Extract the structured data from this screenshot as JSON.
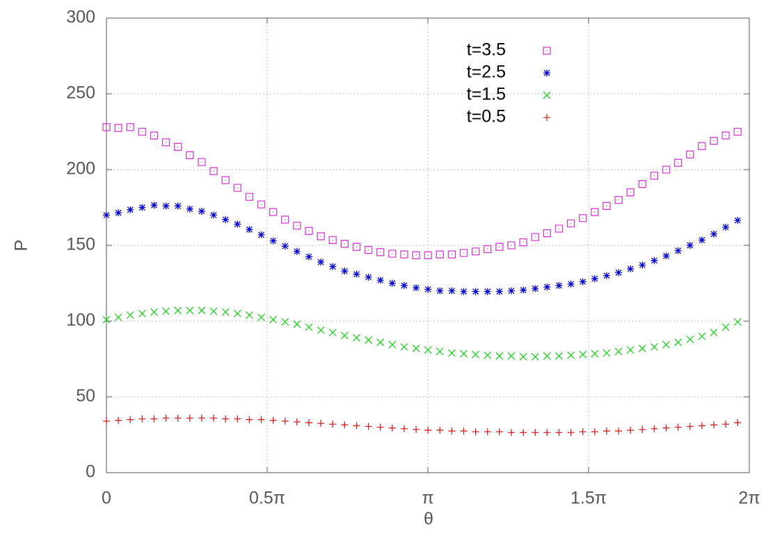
{
  "chart_data": {
    "type": "scatter",
    "xlabel": "θ",
    "ylabel": "P",
    "xlim": [
      0,
      6.2832
    ],
    "ylim": [
      0,
      300
    ],
    "xticks": [
      0,
      {
        "value": 1.5708,
        "label": "0.5π"
      },
      {
        "value": 3.1416,
        "label": "π"
      },
      {
        "value": 4.7124,
        "label": "1.5π"
      },
      {
        "value": 6.2832,
        "label": "2π"
      }
    ],
    "yticks": [
      0,
      50,
      100,
      150,
      200,
      250,
      300
    ],
    "grid": true,
    "x": [
      0,
      0.1164,
      0.2328,
      0.3492,
      0.4656,
      0.582,
      0.6984,
      0.8148,
      0.9312,
      1.0476,
      1.164,
      1.2804,
      1.3968,
      1.5132,
      1.6296,
      1.746,
      1.8624,
      1.9788,
      2.0952,
      2.2116,
      2.328,
      2.4444,
      2.5608,
      2.6772,
      2.7936,
      2.91,
      3.0264,
      3.1428,
      3.2592,
      3.3756,
      3.492,
      3.6084,
      3.7248,
      3.8412,
      3.9576,
      4.074,
      4.1904,
      4.3068,
      4.4232,
      4.5396,
      4.656,
      4.7724,
      4.8888,
      5.0052,
      5.1216,
      5.238,
      5.3544,
      5.4708,
      5.5872,
      5.7036,
      5.82,
      5.9364,
      6.0528,
      6.1692
    ],
    "series": [
      {
        "name": "t=3.5",
        "color": "#d040d0",
        "marker": "square",
        "values": [
          228,
          227.5,
          228,
          225,
          222.5,
          218,
          215,
          209.5,
          205,
          199,
          193,
          188,
          182,
          177,
          172,
          167,
          163,
          159.5,
          156,
          153.5,
          151,
          149,
          147,
          145.5,
          144.5,
          144,
          143.5,
          143.5,
          144,
          144,
          145,
          146,
          147.5,
          149,
          150,
          152,
          155.5,
          158,
          161,
          164.5,
          168,
          172,
          176,
          180,
          185,
          190.5,
          196,
          200,
          204.5,
          210,
          215.5,
          219,
          222.5,
          225
        ]
      },
      {
        "name": "t=2.5",
        "color": "#0000d0",
        "marker": "star",
        "values": [
          170,
          171.5,
          173.5,
          175,
          176.5,
          176,
          176,
          174,
          172.5,
          170,
          167,
          164,
          160.5,
          157,
          153,
          149.5,
          146,
          142.5,
          139,
          136,
          133,
          131,
          129,
          127,
          125,
          123.5,
          122,
          121,
          120,
          120,
          119.5,
          119.5,
          119.5,
          119.5,
          120,
          120.5,
          121.5,
          122.5,
          123.5,
          124.5,
          126,
          128,
          130,
          132,
          134.5,
          137,
          140,
          143,
          146.5,
          150,
          153.5,
          157.5,
          162,
          166.5
        ]
      },
      {
        "name": "t=1.5",
        "color": "#20d020",
        "marker": "cross",
        "values": [
          101,
          102.5,
          104,
          105,
          106,
          106.5,
          107,
          107,
          107,
          106.5,
          106,
          105,
          104,
          102.5,
          101,
          99.5,
          98,
          96,
          94,
          92.5,
          90.5,
          89,
          87.5,
          86,
          84.5,
          83,
          82,
          81,
          80,
          79,
          78.5,
          78,
          77.5,
          77,
          77,
          76.5,
          76.5,
          77,
          77,
          77.5,
          78,
          78.5,
          79,
          80,
          81,
          82,
          83,
          84.5,
          86,
          88,
          90,
          92.5,
          96,
          99.5
        ]
      },
      {
        "name": "t=0.5",
        "color": "#d02020",
        "marker": "plus",
        "values": [
          34,
          34.5,
          35,
          35.5,
          35.5,
          36,
          36,
          36,
          36,
          36,
          35.5,
          35.5,
          35,
          35,
          34.5,
          34,
          33.5,
          33,
          32.5,
          32,
          31.5,
          31,
          30.5,
          30,
          29.5,
          29,
          28.5,
          28,
          28,
          27.5,
          27.5,
          27,
          27,
          27,
          26.5,
          26.5,
          26.5,
          26.5,
          26.5,
          26.5,
          27,
          27,
          27.5,
          27.5,
          28,
          28.5,
          29,
          29.5,
          30,
          30.5,
          31,
          31.5,
          32,
          33
        ]
      }
    ]
  }
}
